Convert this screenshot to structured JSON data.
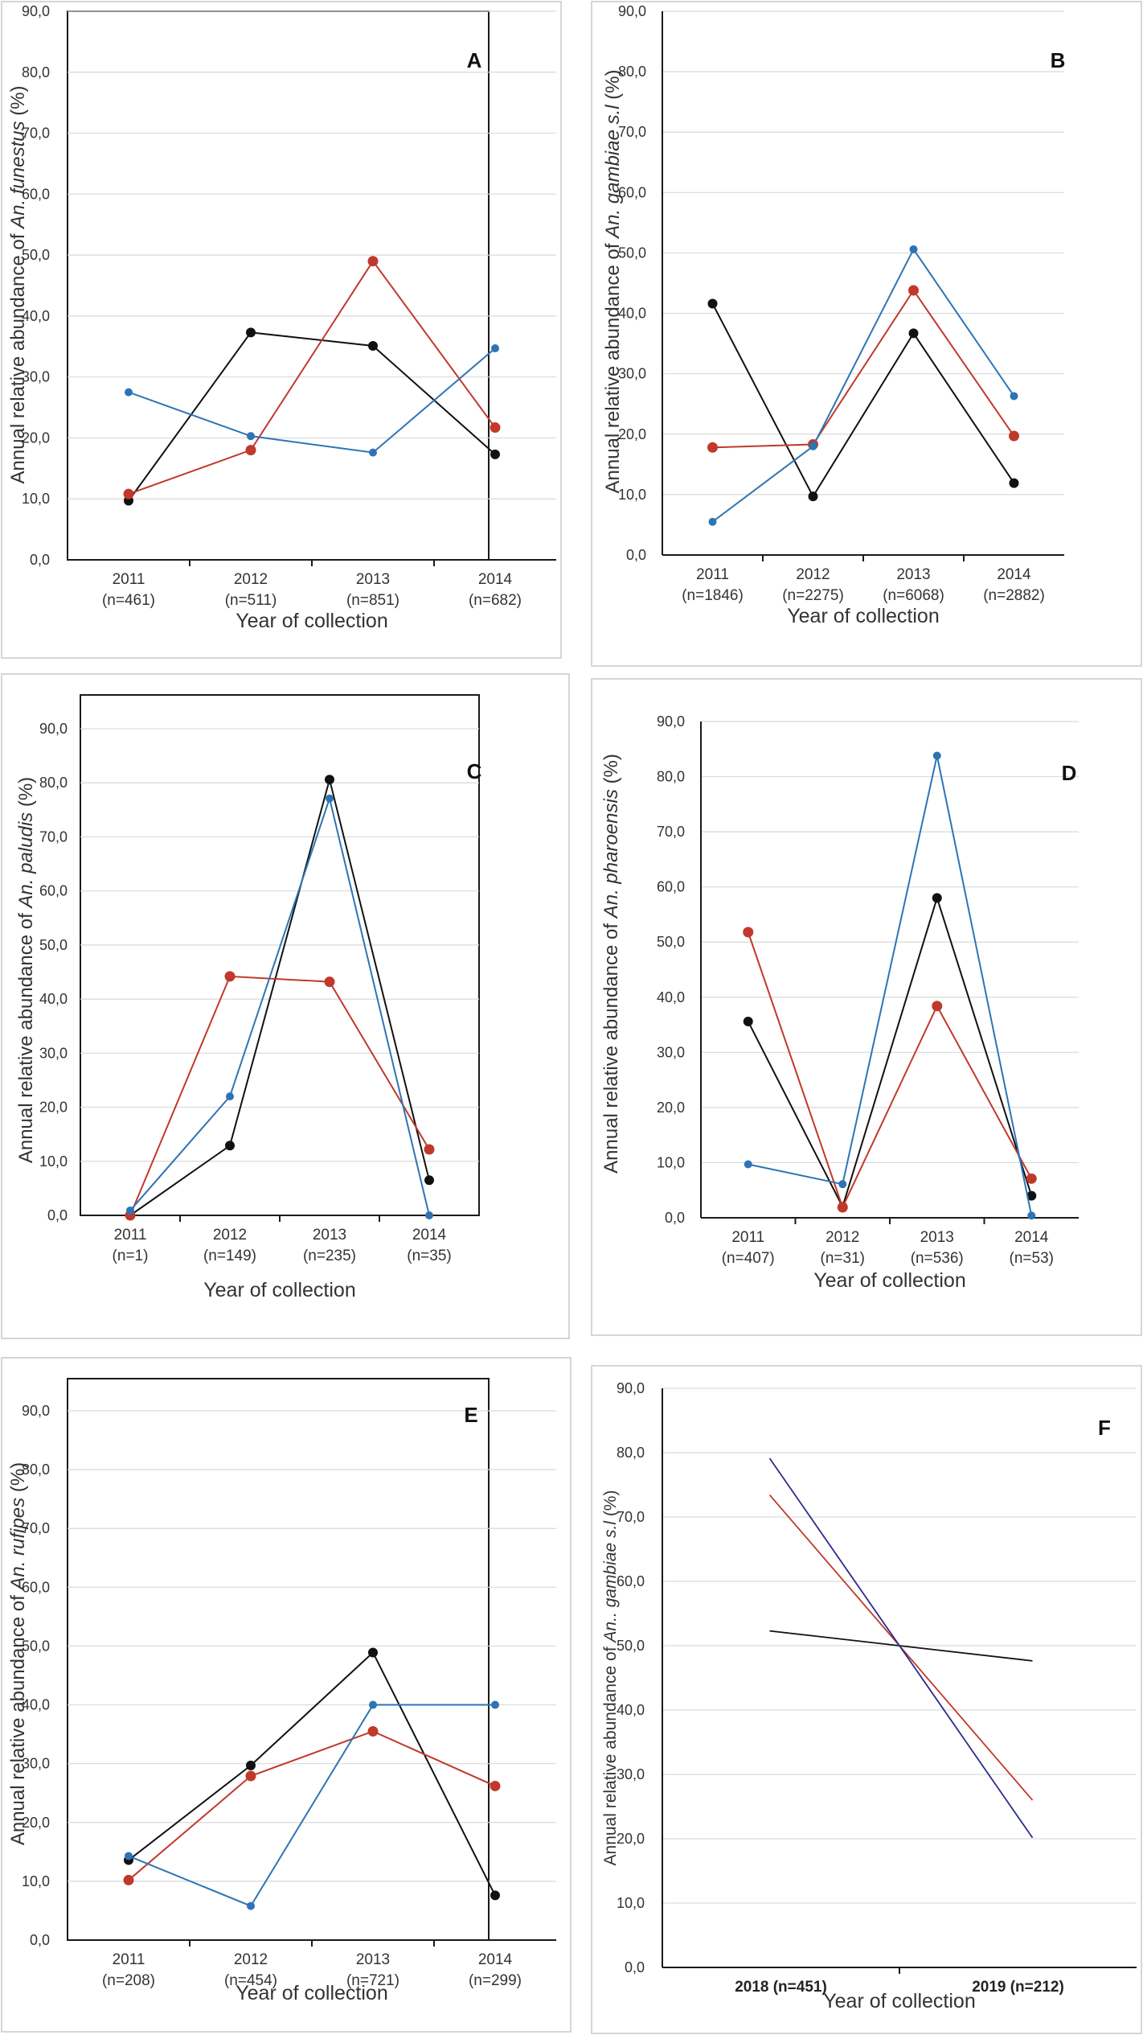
{
  "colors": {
    "black": "#111111",
    "red": "#c0392b",
    "blue": "#2e74b5",
    "navy": "#2b2b8c"
  },
  "chart_data": [
    {
      "type": "line",
      "panel": "A",
      "title": "",
      "ylabel_prefix": "Annual relative abundance of ",
      "ylabel_species": "An. funestus",
      "ylabel_suffix": " (%)",
      "xlabel": "Year of collection",
      "categories": [
        "2011",
        "2012",
        "2013",
        "2014"
      ],
      "sublabels": [
        "(n=461)",
        "(n=511)",
        "(n=851)",
        "(n=682)"
      ],
      "ylim": [
        0,
        90
      ],
      "yticks": [
        "0,0",
        "10,0",
        "20,0",
        "30,0",
        "40,0",
        "50,0",
        "60,0",
        "70,0",
        "80,0",
        "90,0"
      ],
      "series": [
        {
          "name": "black",
          "color": "#111111",
          "values": [
            9.7,
            37.3,
            35.1,
            17.3
          ]
        },
        {
          "name": "red",
          "color": "#c0392b",
          "values": [
            10.8,
            18.0,
            49.0,
            21.7
          ]
        },
        {
          "name": "blue",
          "color": "#2e74b5",
          "values": [
            27.5,
            20.3,
            17.6,
            34.7
          ]
        }
      ]
    },
    {
      "type": "line",
      "panel": "B",
      "ylabel_prefix": "Annual relative abundance of ",
      "ylabel_species": "An. gambiae s.l",
      "ylabel_suffix": " (%)",
      "xlabel": "Year of collection",
      "categories": [
        "2011",
        "2012",
        "2013",
        "2014"
      ],
      "sublabels": [
        "(n=1846)",
        "(n=2275)",
        "(n=6068)",
        "(n=2882)"
      ],
      "ylim": [
        0,
        90
      ],
      "yticks": [
        "0,0",
        "10,0",
        "20,0",
        "30,0",
        "40,0",
        "50,0",
        "60,0",
        "70,0",
        "80,0",
        "90,0"
      ],
      "series": [
        {
          "name": "black",
          "color": "#111111",
          "values": [
            41.6,
            9.7,
            36.7,
            11.9
          ]
        },
        {
          "name": "red",
          "color": "#c0392b",
          "values": [
            17.8,
            18.3,
            43.8,
            19.7
          ]
        },
        {
          "name": "blue",
          "color": "#2e74b5",
          "values": [
            5.5,
            18.0,
            50.6,
            26.3
          ]
        }
      ]
    },
    {
      "type": "line",
      "panel": "C",
      "ylabel_prefix": "Annual relative abundance of ",
      "ylabel_species": "An. paludis",
      "ylabel_suffix": " (%)",
      "xlabel": "Year of collection",
      "categories": [
        "2011",
        "2012",
        "2013",
        "2014"
      ],
      "sublabels": [
        "(n=1)",
        "(n=149)",
        "(n=235)",
        "(n=35)"
      ],
      "ylim": [
        0,
        90
      ],
      "yticks": [
        "0,0",
        "10,0",
        "20,0",
        "30,0",
        "40,0",
        "50,0",
        "60,0",
        "70,0",
        "80,0",
        "90,0"
      ],
      "series": [
        {
          "name": "black",
          "color": "#111111",
          "values": [
            0.0,
            12.9,
            80.6,
            6.5
          ]
        },
        {
          "name": "red",
          "color": "#c0392b",
          "values": [
            0.0,
            44.2,
            43.2,
            12.2
          ]
        },
        {
          "name": "blue",
          "color": "#2e74b5",
          "values": [
            0.9,
            22.0,
            77.1,
            0.0
          ]
        }
      ]
    },
    {
      "type": "line",
      "panel": "D",
      "ylabel_prefix": "Annual relative abundance of ",
      "ylabel_species": "An. pharoensis",
      "ylabel_suffix": " (%)",
      "xlabel": "Year of collection",
      "categories": [
        "2011",
        "2012",
        "2013",
        "2014"
      ],
      "sublabels": [
        "(n=407)",
        "(n=31)",
        "(n=536)",
        "(n=53)"
      ],
      "ylim": [
        0,
        90
      ],
      "yticks": [
        "0,0",
        "10,0",
        "20,0",
        "30,0",
        "40,0",
        "50,0",
        "60,0",
        "70,0",
        "80,0",
        "90,0"
      ],
      "series": [
        {
          "name": "black",
          "color": "#111111",
          "values": [
            35.6,
            2.0,
            58.0,
            4.0
          ]
        },
        {
          "name": "red",
          "color": "#c0392b",
          "values": [
            51.8,
            1.9,
            38.4,
            7.1
          ]
        },
        {
          "name": "blue",
          "color": "#2e74b5",
          "values": [
            9.7,
            6.1,
            83.8,
            0.4
          ]
        }
      ]
    },
    {
      "type": "line",
      "panel": "E",
      "ylabel_prefix": "Annual relative abundance of ",
      "ylabel_species": "An. rufipes",
      "ylabel_suffix": " (%)",
      "xlabel": "Year of collection",
      "categories": [
        "2011",
        "2012",
        "2013",
        "2014"
      ],
      "sublabels": [
        "(n=208)",
        "(n=454)",
        "(n=721)",
        "(n=299)"
      ],
      "ylim": [
        0,
        90
      ],
      "yticks": [
        "0,0",
        "10,0",
        "20,0",
        "30,0",
        "40,0",
        "50,0",
        "60,0",
        "70,0",
        "80,0",
        "90,0"
      ],
      "series": [
        {
          "name": "black",
          "color": "#111111",
          "values": [
            13.6,
            29.7,
            48.9,
            7.6
          ]
        },
        {
          "name": "red",
          "color": "#c0392b",
          "values": [
            10.2,
            27.9,
            35.5,
            26.2
          ]
        },
        {
          "name": "blue",
          "color": "#2e74b5",
          "values": [
            14.3,
            5.8,
            40.0,
            40.0
          ]
        }
      ]
    },
    {
      "type": "line",
      "panel": "F",
      "ylabel_prefix": "Annual relative abundance of ",
      "ylabel_species": "An.. gambiae s.l",
      "ylabel_suffix": " (%)",
      "xlabel": "Year of collection",
      "categories": [
        "2018 (n=451)",
        "2019 (n=212)"
      ],
      "sublabels": [],
      "ylim": [
        0,
        90
      ],
      "yticks": [
        "0,0",
        "10,0",
        "20,0",
        "30,0",
        "40,0",
        "50,0",
        "60,0",
        "70,0",
        "80,0",
        "90,0"
      ],
      "series": [
        {
          "name": "black",
          "color": "#111111",
          "values": [
            52.1,
            47.9
          ]
        },
        {
          "name": "red",
          "color": "#c0392b",
          "values": [
            71.4,
            28.6
          ]
        },
        {
          "name": "navy",
          "color": "#2b2b8c",
          "values": [
            76.6,
            23.4
          ]
        }
      ]
    }
  ]
}
